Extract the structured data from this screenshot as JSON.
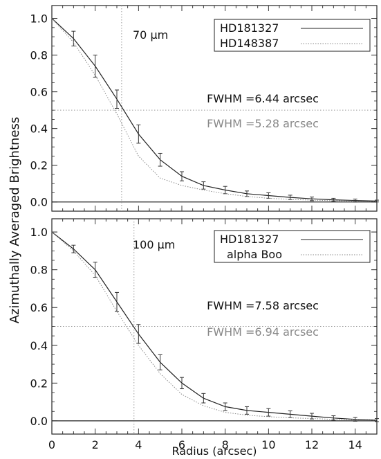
{
  "chart_data": {
    "type": "line",
    "ylabel": "Azimuthally Averaged Brightness",
    "xlabel": "Radius (arcsec)",
    "xlim": [
      0,
      15
    ],
    "x_ticks": [
      "0",
      "2",
      "4",
      "6",
      "8",
      "10",
      "12",
      "14"
    ],
    "y_ticks": [
      "0.0",
      "0.2",
      "0.4",
      "0.6",
      "0.8",
      "1.0"
    ],
    "panels": [
      {
        "name": "top",
        "label": "70 μm",
        "ylim": [
          -0.05,
          1.07
        ],
        "vline_x": 3.22,
        "hline_y": 0.5,
        "fwhm_texts": [
          "FWHM =6.44 arcsec",
          "FWHM =5.28 arcsec"
        ],
        "series": [
          {
            "name": "HD181327",
            "style": "solid",
            "color": "#222222",
            "x": [
              0,
              1,
              2,
              3,
              4,
              5,
              6,
              7,
              8,
              9,
              10,
              11,
              12,
              13,
              14,
              15
            ],
            "y": [
              1.0,
              0.89,
              0.74,
              0.56,
              0.37,
              0.23,
              0.14,
              0.09,
              0.065,
              0.045,
              0.035,
              0.025,
              0.017,
              0.012,
              0.008,
              0.005
            ],
            "err": [
              0.01,
              0.04,
              0.06,
              0.05,
              0.05,
              0.035,
              0.025,
              0.02,
              0.02,
              0.015,
              0.015,
              0.012,
              0.01,
              0.008,
              0.008,
              0.005
            ]
          },
          {
            "name": "HD148387",
            "style": "dotted",
            "color": "#888888",
            "x": [
              0,
              1,
              2,
              3,
              4,
              5,
              6,
              7,
              8,
              9,
              10,
              11,
              12,
              13,
              14,
              15
            ],
            "y": [
              1.0,
              0.87,
              0.69,
              0.48,
              0.25,
              0.13,
              0.09,
              0.065,
              0.045,
              0.03,
              0.02,
              0.014,
              0.01,
              0.007,
              0.005,
              0.003
            ]
          }
        ]
      },
      {
        "name": "bottom",
        "label": "100 μm",
        "ylim": [
          -0.07,
          1.07
        ],
        "vline_x": 3.79,
        "hline_y": 0.5,
        "fwhm_texts": [
          "FWHM =7.58 arcsec",
          "FWHM =6.94 arcsec"
        ],
        "series": [
          {
            "name": "HD181327",
            "style": "solid",
            "color": "#222222",
            "x": [
              0,
              1,
              2,
              3,
              4,
              5,
              6,
              7,
              8,
              9,
              10,
              11,
              12,
              13,
              14,
              15
            ],
            "y": [
              1.0,
              0.91,
              0.8,
              0.63,
              0.46,
              0.31,
              0.2,
              0.12,
              0.075,
              0.055,
              0.045,
              0.035,
              0.025,
              0.015,
              0.008,
              0.004
            ],
            "err": [
              0.01,
              0.02,
              0.04,
              0.05,
              0.05,
              0.04,
              0.03,
              0.025,
              0.02,
              0.02,
              0.02,
              0.018,
              0.015,
              0.012,
              0.01,
              0.008
            ]
          },
          {
            "name": "alpha Boo",
            "style": "dotted",
            "color": "#888888",
            "x": [
              0,
              1,
              2,
              3,
              4,
              5,
              6,
              7,
              8,
              9,
              10,
              11,
              12,
              13,
              14,
              15
            ],
            "y": [
              1.0,
              0.9,
              0.77,
              0.58,
              0.4,
              0.25,
              0.14,
              0.08,
              0.045,
              0.03,
              0.022,
              0.016,
              0.012,
              0.008,
              0.005,
              0.003
            ]
          }
        ]
      }
    ]
  }
}
